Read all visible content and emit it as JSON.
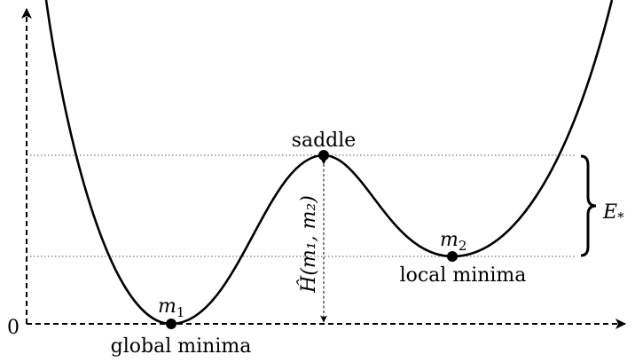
{
  "labels": {
    "origin": "0",
    "saddle": "saddle",
    "global_minima": "global minima",
    "local_minima": "local minima",
    "m1": "m",
    "m1_sub": "1",
    "m2": "m",
    "m2_sub": "2",
    "barrier_height": "Ĥ(m₁, m₂)",
    "energy_gap": "E",
    "energy_gap_sub": "*"
  },
  "colors": {
    "line": "#000000",
    "guide": "#555555"
  }
}
